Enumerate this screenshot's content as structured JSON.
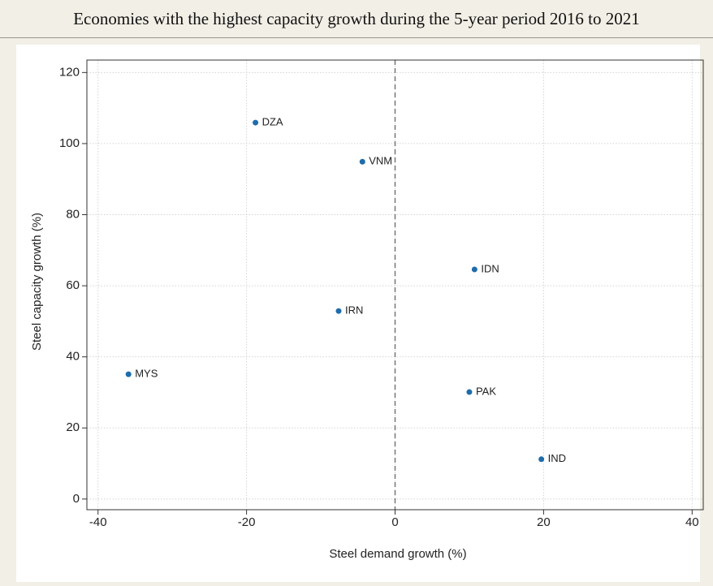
{
  "chart_data": {
    "type": "scatter",
    "title": "Economies with the highest capacity growth during the 5-year period 2016 to 2021",
    "x_label": "Steel demand growth (%)",
    "y_label": "Steel capacity growth (%)",
    "labels": [
      "DZA",
      "VNM",
      "IDN",
      "IRN",
      "MYS",
      "PAK",
      "IND"
    ],
    "x": [
      -18.8,
      -4.4,
      10.7,
      -7.6,
      -35.9,
      10.0,
      19.7
    ],
    "values": [
      105.9,
      94.9,
      64.6,
      52.9,
      35.1,
      30.1,
      11.2
    ],
    "color": "#1f6cab",
    "xlim": [
      -41.5,
      41.5
    ],
    "xticks": [
      -40,
      -20,
      0,
      20,
      40
    ],
    "ylim": [
      -3,
      123.5
    ],
    "yticks": [
      0,
      20,
      40,
      60,
      80,
      100,
      120
    ],
    "grid": true,
    "reference_line_x": 0
  }
}
